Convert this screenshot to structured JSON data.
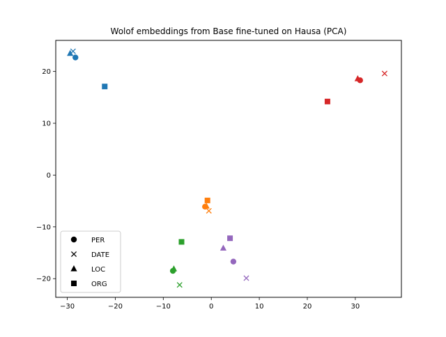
{
  "chart_data": {
    "type": "scatter",
    "title": "Wolof embeddings from Base fine-tuned on Hausa (PCA)",
    "xlabel": "",
    "ylabel": "",
    "xlim": [
      -32.4,
      39.6
    ],
    "ylim": [
      -23.6,
      26.0
    ],
    "xticks": [
      -30,
      -20,
      -10,
      0,
      10,
      20,
      30
    ],
    "yticks": [
      -20,
      -10,
      0,
      10,
      20
    ],
    "grid": false,
    "legend": {
      "placement": "lower-left",
      "entries": [
        {
          "label": "PER",
          "marker": "circle"
        },
        {
          "label": "DATE",
          "marker": "x"
        },
        {
          "label": "LOC",
          "marker": "triangle"
        },
        {
          "label": "ORG",
          "marker": "square"
        }
      ]
    },
    "series": [
      {
        "color": "#1f77b4",
        "points": [
          {
            "entity": "PER",
            "x": -28.3,
            "y": 22.7
          },
          {
            "entity": "DATE",
            "x": -28.8,
            "y": 23.9
          },
          {
            "entity": "LOC",
            "x": -29.4,
            "y": 23.5
          },
          {
            "entity": "ORG",
            "x": -22.2,
            "y": 17.1
          }
        ]
      },
      {
        "color": "#ff7f0e",
        "points": [
          {
            "entity": "PER",
            "x": -1.3,
            "y": -6.1
          },
          {
            "entity": "DATE",
            "x": -0.5,
            "y": -6.9
          },
          {
            "entity": "LOC",
            "x": -1.0,
            "y": -6.0
          },
          {
            "entity": "ORG",
            "x": -0.8,
            "y": -4.9
          }
        ]
      },
      {
        "color": "#2ca02c",
        "points": [
          {
            "entity": "PER",
            "x": -8.0,
            "y": -18.5
          },
          {
            "entity": "DATE",
            "x": -6.6,
            "y": -21.2
          },
          {
            "entity": "LOC",
            "x": -7.8,
            "y": -18.1
          },
          {
            "entity": "ORG",
            "x": -6.2,
            "y": -12.9
          }
        ]
      },
      {
        "color": "#d62728",
        "points": [
          {
            "entity": "PER",
            "x": 31.0,
            "y": 18.3
          },
          {
            "entity": "DATE",
            "x": 36.1,
            "y": 19.6
          },
          {
            "entity": "LOC",
            "x": 30.5,
            "y": 18.6
          },
          {
            "entity": "ORG",
            "x": 24.2,
            "y": 14.2
          }
        ]
      },
      {
        "color": "#9467bd",
        "points": [
          {
            "entity": "PER",
            "x": 4.6,
            "y": -16.7
          },
          {
            "entity": "DATE",
            "x": 7.3,
            "y": -19.9
          },
          {
            "entity": "LOC",
            "x": 2.5,
            "y": -14.1
          },
          {
            "entity": "ORG",
            "x": 3.9,
            "y": -12.2
          }
        ]
      }
    ]
  }
}
